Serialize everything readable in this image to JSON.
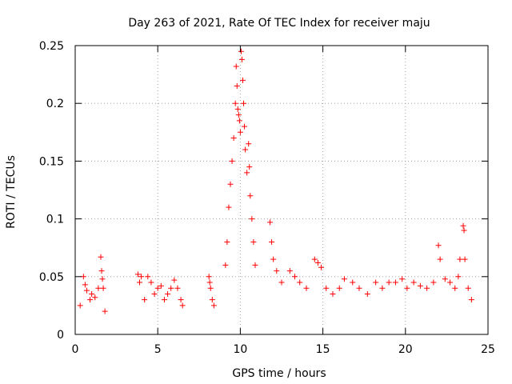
{
  "chart_data": {
    "type": "scatter",
    "title": "Day 263 of 2021, Rate Of TEC Index for receiver maju",
    "xlabel": "GPS time / hours",
    "ylabel": "ROTI / TECUs",
    "xlim": [
      0,
      25
    ],
    "ylim": [
      0,
      0.25
    ],
    "x_ticks": [
      0,
      5,
      10,
      15,
      20,
      25
    ],
    "y_ticks": [
      0,
      0.05,
      0.1,
      0.15,
      0.2,
      0.25
    ],
    "x_tick_labels": [
      "0",
      "5",
      "10",
      "15",
      "20",
      "25"
    ],
    "y_tick_labels": [
      "0",
      "0.05",
      "0.1",
      "0.15",
      "0.2",
      "0.25"
    ],
    "grid": true,
    "marker": "plus",
    "color": "#ff0000",
    "points": [
      [
        0.3,
        0.025
      ],
      [
        0.5,
        0.05
      ],
      [
        0.6,
        0.043
      ],
      [
        0.7,
        0.038
      ],
      [
        0.9,
        0.03
      ],
      [
        1.0,
        0.035
      ],
      [
        1.2,
        0.032
      ],
      [
        1.4,
        0.04
      ],
      [
        1.55,
        0.067
      ],
      [
        1.6,
        0.055
      ],
      [
        1.65,
        0.048
      ],
      [
        1.7,
        0.04
      ],
      [
        1.8,
        0.02
      ],
      [
        3.8,
        0.052
      ],
      [
        3.9,
        0.045
      ],
      [
        4.0,
        0.05
      ],
      [
        4.2,
        0.03
      ],
      [
        4.4,
        0.05
      ],
      [
        4.6,
        0.045
      ],
      [
        4.8,
        0.035
      ],
      [
        5.0,
        0.04
      ],
      [
        5.2,
        0.042
      ],
      [
        5.4,
        0.03
      ],
      [
        5.6,
        0.035
      ],
      [
        5.8,
        0.04
      ],
      [
        6.0,
        0.047
      ],
      [
        6.2,
        0.04
      ],
      [
        6.4,
        0.03
      ],
      [
        6.5,
        0.025
      ],
      [
        8.1,
        0.05
      ],
      [
        8.15,
        0.045
      ],
      [
        8.2,
        0.04
      ],
      [
        8.3,
        0.03
      ],
      [
        8.4,
        0.025
      ],
      [
        9.1,
        0.06
      ],
      [
        9.2,
        0.08
      ],
      [
        9.3,
        0.11
      ],
      [
        9.4,
        0.13
      ],
      [
        9.5,
        0.15
      ],
      [
        9.6,
        0.17
      ],
      [
        9.7,
        0.2
      ],
      [
        9.75,
        0.232
      ],
      [
        9.8,
        0.215
      ],
      [
        9.85,
        0.195
      ],
      [
        9.9,
        0.19
      ],
      [
        9.95,
        0.185
      ],
      [
        10.0,
        0.175
      ],
      [
        10.05,
        0.245
      ],
      [
        10.1,
        0.238
      ],
      [
        10.15,
        0.22
      ],
      [
        10.2,
        0.2
      ],
      [
        10.25,
        0.18
      ],
      [
        10.3,
        0.16
      ],
      [
        10.4,
        0.14
      ],
      [
        10.5,
        0.165
      ],
      [
        10.55,
        0.145
      ],
      [
        10.6,
        0.12
      ],
      [
        10.7,
        0.1
      ],
      [
        10.8,
        0.08
      ],
      [
        10.9,
        0.06
      ],
      [
        11.8,
        0.097
      ],
      [
        11.9,
        0.08
      ],
      [
        12.0,
        0.065
      ],
      [
        12.2,
        0.055
      ],
      [
        12.5,
        0.045
      ],
      [
        13.0,
        0.055
      ],
      [
        13.3,
        0.05
      ],
      [
        13.6,
        0.045
      ],
      [
        14.0,
        0.04
      ],
      [
        14.5,
        0.065
      ],
      [
        14.7,
        0.062
      ],
      [
        14.9,
        0.058
      ],
      [
        15.2,
        0.04
      ],
      [
        15.6,
        0.035
      ],
      [
        16.0,
        0.04
      ],
      [
        16.3,
        0.048
      ],
      [
        16.8,
        0.045
      ],
      [
        17.2,
        0.04
      ],
      [
        17.7,
        0.035
      ],
      [
        18.2,
        0.045
      ],
      [
        18.6,
        0.04
      ],
      [
        19.0,
        0.045
      ],
      [
        19.4,
        0.045
      ],
      [
        19.8,
        0.048
      ],
      [
        20.1,
        0.04
      ],
      [
        20.5,
        0.045
      ],
      [
        20.9,
        0.042
      ],
      [
        21.3,
        0.04
      ],
      [
        21.7,
        0.045
      ],
      [
        22.0,
        0.077
      ],
      [
        22.1,
        0.065
      ],
      [
        22.4,
        0.048
      ],
      [
        22.7,
        0.045
      ],
      [
        23.0,
        0.04
      ],
      [
        23.2,
        0.05
      ],
      [
        23.3,
        0.065
      ],
      [
        23.5,
        0.094
      ],
      [
        23.55,
        0.09
      ],
      [
        23.6,
        0.065
      ],
      [
        23.8,
        0.04
      ],
      [
        24.0,
        0.03
      ]
    ]
  }
}
